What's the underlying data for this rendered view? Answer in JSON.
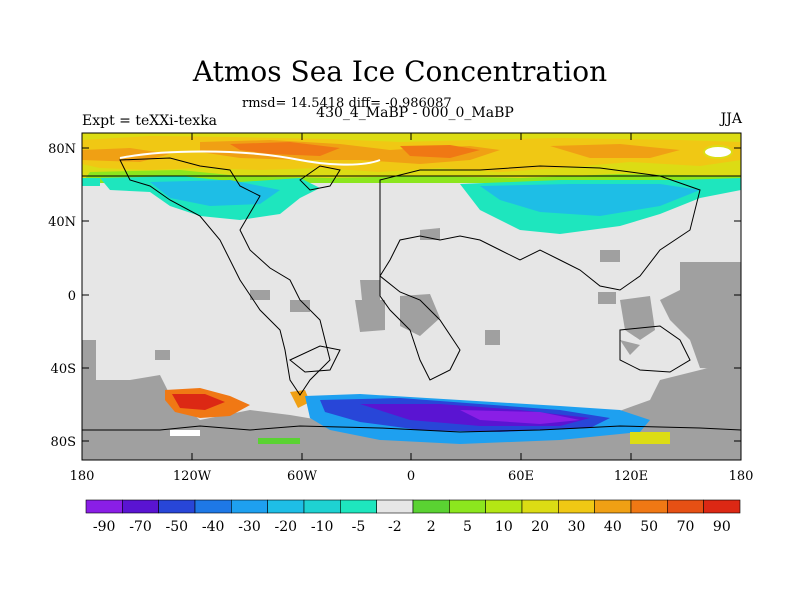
{
  "title": "Atmos Sea Ice Concentration",
  "stats": "rmsd= 14.5418 diff= -0.986087",
  "period": "430_4_MaBP - 000_0_MaBP",
  "experiment": "Expt = teXXi-texka",
  "season": "JJA",
  "axes": {
    "x_ticks": [
      "180",
      "120W",
      "60W",
      "0",
      "60E",
      "120E",
      "180"
    ],
    "y_ticks": [
      "80N",
      "40N",
      "0",
      "40S",
      "80S"
    ]
  },
  "colors": {
    "land_mask": "#a0a0a0",
    "no_change": "#e6e6e6",
    "outline": "#000000"
  },
  "colorbar": {
    "labels": [
      "-90",
      "-70",
      "-50",
      "-40",
      "-30",
      "-20",
      "-10",
      "-5",
      "-2",
      "2",
      "5",
      "10",
      "20",
      "30",
      "40",
      "50",
      "70",
      "90"
    ],
    "colors": [
      "#8a1ee6",
      "#5a14d2",
      "#2846d8",
      "#1e78e6",
      "#1ea0f0",
      "#1ebee6",
      "#1ed2d2",
      "#1ee6be",
      "#e6e6e6",
      "#5ad232",
      "#8ce61e",
      "#b4e614",
      "#dcdc14",
      "#f0c814",
      "#f0a014",
      "#f07814",
      "#e65014",
      "#dc2814"
    ]
  }
}
